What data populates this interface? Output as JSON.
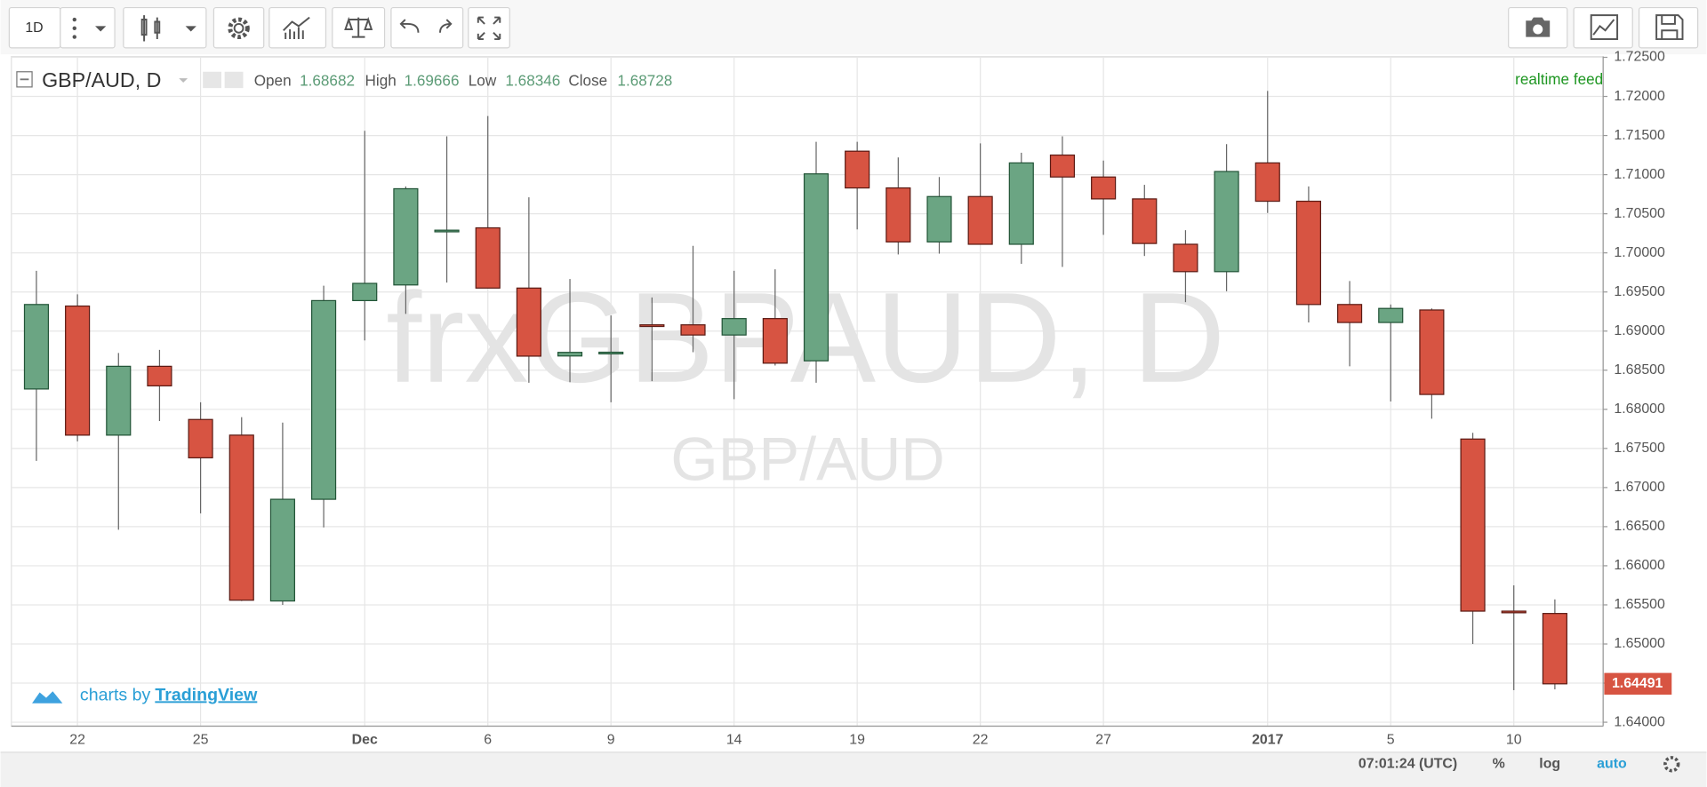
{
  "toolbar": {
    "interval": "1D"
  },
  "legend": {
    "title": "GBP/AUD, D",
    "labels": [
      "Open",
      "High",
      "Low",
      "Close"
    ]
  },
  "watermark": {
    "main": "frxGBPAUD, D",
    "sub": "GBP/AUD"
  },
  "realtime_label": "realtime feed",
  "branding": {
    "prefix": "charts by",
    "name": "TradingView"
  },
  "status": {
    "time": "07:01:24 (UTC)",
    "percent": "%",
    "log": "log",
    "auto": "auto"
  },
  "chart_data": {
    "type": "candlestick",
    "categories": [
      null,
      "22",
      null,
      null,
      "25",
      null,
      null,
      null,
      "Dec",
      null,
      null,
      "6",
      null,
      null,
      "9",
      null,
      null,
      "14",
      null,
      null,
      "19",
      null,
      null,
      "22",
      null,
      null,
      "27",
      null,
      null,
      null,
      "2017",
      null,
      null,
      "5",
      null,
      null,
      "10",
      null
    ],
    "open": [
      1.6826,
      1.6932,
      1.6767,
      1.6855,
      1.6787,
      1.6767,
      1.6555,
      1.6685,
      1.6939,
      1.6959,
      1.7028,
      1.7032,
      1.6955,
      1.68682,
      1.6872,
      1.6908,
      1.6908,
      1.6895,
      1.6916,
      1.6862,
      1.713,
      1.7083,
      1.7014,
      1.7072,
      1.7011,
      1.7125,
      1.7097,
      1.7069,
      1.7011,
      1.6976,
      1.7115,
      1.7066,
      1.6934,
      1.6911,
      1.6927,
      1.6762,
      1.6542,
      1.6539
    ],
    "high": [
      1.6977,
      1.6947,
      1.6872,
      1.6876,
      1.6809,
      1.679,
      1.6783,
      1.6958,
      1.7156,
      1.7085,
      1.7149,
      1.7175,
      1.7071,
      1.69666,
      1.692,
      1.6943,
      1.7009,
      1.6977,
      1.6979,
      1.7142,
      1.7142,
      1.7122,
      1.7097,
      1.714,
      1.7128,
      1.7149,
      1.7118,
      1.7087,
      1.7029,
      1.7139,
      1.7207,
      1.7085,
      1.6964,
      1.6934,
      1.6929,
      1.677,
      1.6575,
      1.6557
    ],
    "low": [
      1.6734,
      1.6759,
      1.6646,
      1.6785,
      1.6667,
      1.6555,
      1.655,
      1.6649,
      1.6888,
      1.6922,
      1.6962,
      1.6955,
      1.6834,
      1.68346,
      1.6809,
      1.6836,
      1.6873,
      1.6813,
      1.6856,
      1.6834,
      1.703,
      1.6998,
      1.6999,
      1.7011,
      1.6986,
      1.6982,
      1.7023,
      1.6996,
      1.6937,
      1.6951,
      1.7051,
      1.6911,
      1.6855,
      1.681,
      1.6788,
      1.65,
      1.6441,
      1.6442
    ],
    "close": [
      1.6934,
      1.6767,
      1.6855,
      1.683,
      1.6738,
      1.6556,
      1.6685,
      1.6939,
      1.6961,
      1.7082,
      1.7029,
      1.6955,
      1.6868,
      1.68728,
      1.6873,
      1.6907,
      1.6895,
      1.6916,
      1.6859,
      1.7101,
      1.7083,
      1.7014,
      1.7072,
      1.7011,
      1.7115,
      1.7097,
      1.7069,
      1.7012,
      1.6976,
      1.7104,
      1.7066,
      1.6934,
      1.6911,
      1.6929,
      1.6819,
      1.6542,
      1.6541,
      1.64491
    ],
    "up_color": "#6ba583",
    "down_color": "#d75442",
    "ylim": [
      1.6395,
      1.7251
    ],
    "yticks": [
      {
        "value": 1.64,
        "label": "1.64000"
      },
      {
        "value": 1.645,
        "label": "1.64500"
      },
      {
        "value": 1.65,
        "label": "1.65000"
      },
      {
        "value": 1.655,
        "label": "1.65500"
      },
      {
        "value": 1.66,
        "label": "1.66000"
      },
      {
        "value": 1.665,
        "label": "1.66500"
      },
      {
        "value": 1.67,
        "label": "1.67000"
      },
      {
        "value": 1.675,
        "label": "1.67500"
      },
      {
        "value": 1.68,
        "label": "1.68000"
      },
      {
        "value": 1.685,
        "label": "1.68500"
      },
      {
        "value": 1.69,
        "label": "1.69000"
      },
      {
        "value": 1.695,
        "label": "1.69500"
      },
      {
        "value": 1.7,
        "label": "1.70000"
      },
      {
        "value": 1.705,
        "label": "1.70500"
      },
      {
        "value": 1.71,
        "label": "1.71000"
      },
      {
        "value": 1.715,
        "label": "1.71500"
      },
      {
        "value": 1.72,
        "label": "1.72000"
      },
      {
        "value": 1.725,
        "label": "1.72500"
      }
    ],
    "grid": true
  }
}
